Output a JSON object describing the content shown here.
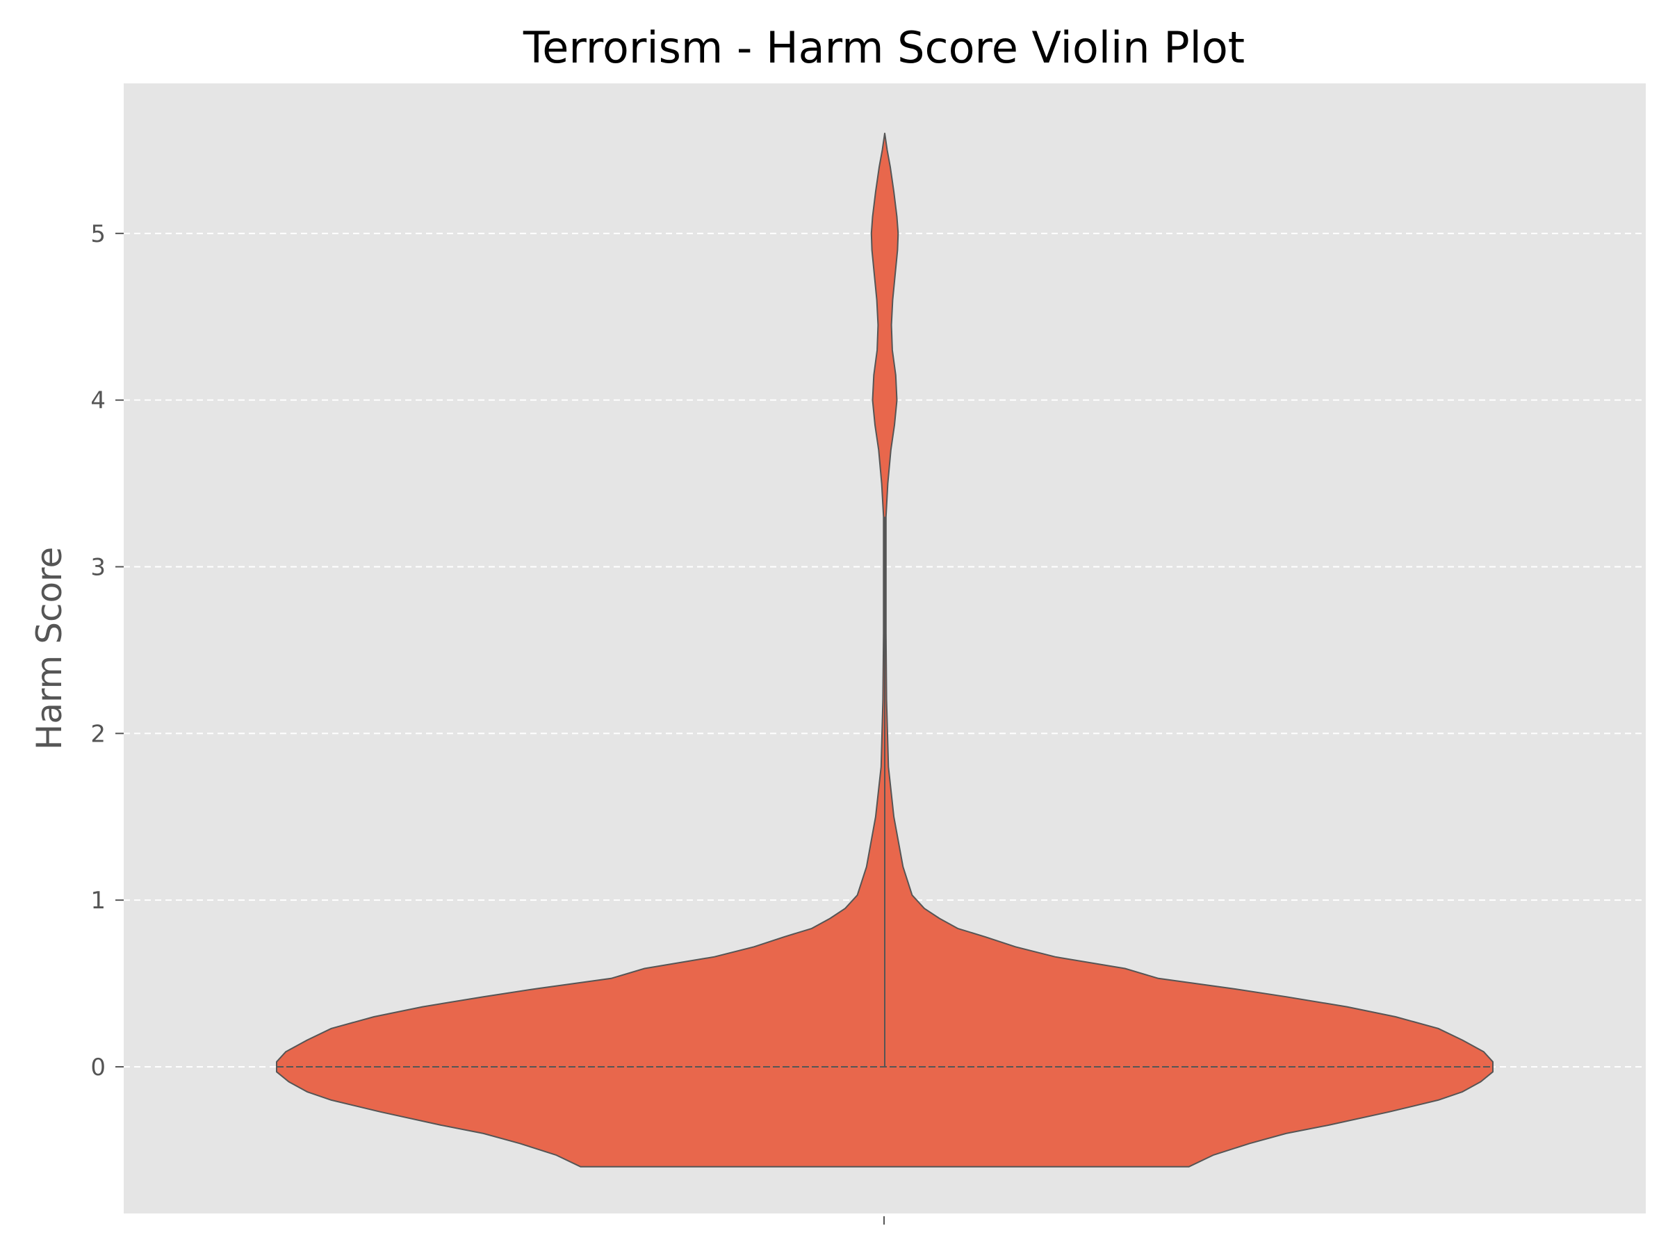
{
  "chart_data": {
    "type": "violin",
    "title": "Terrorism - Harm Score Violin Plot",
    "xlabel": "",
    "ylabel": "Harm Score",
    "ylim": [
      -0.88,
      5.9
    ],
    "yticks": [
      0,
      1,
      2,
      3,
      4,
      5
    ],
    "grid": true,
    "colors": {
      "violin_fill": "#E8674C",
      "violin_edge": "#555555",
      "plot_background": "#E5E5E5",
      "grid": "#FFFFFF"
    },
    "violin": {
      "category": "",
      "data_min": -0.6,
      "data_max": 5.6,
      "median": 0.0,
      "inner_line_range": [
        0.0,
        3.3
      ],
      "density_profile": [
        [
          -0.6,
          1.0
        ],
        [
          -0.53,
          1.08
        ],
        [
          -0.46,
          1.2
        ],
        [
          -0.4,
          1.32
        ],
        [
          -0.35,
          1.46
        ],
        [
          -0.27,
          1.66
        ],
        [
          -0.2,
          1.82
        ],
        [
          -0.15,
          1.9
        ],
        [
          -0.09,
          1.96
        ],
        [
          -0.03,
          2.0
        ],
        [
          0.0,
          2.0
        ],
        [
          0.03,
          2.0
        ],
        [
          0.09,
          1.97
        ],
        [
          0.16,
          1.9
        ],
        [
          0.23,
          1.82
        ],
        [
          0.3,
          1.68
        ],
        [
          0.36,
          1.52
        ],
        [
          0.42,
          1.32
        ],
        [
          0.47,
          1.14
        ],
        [
          0.53,
          0.9
        ],
        [
          0.59,
          0.79
        ],
        [
          0.66,
          0.56
        ],
        [
          0.72,
          0.43
        ],
        [
          0.78,
          0.33
        ],
        [
          0.83,
          0.24
        ],
        [
          0.89,
          0.18
        ],
        [
          0.95,
          0.13
        ],
        [
          1.03,
          0.09
        ],
        [
          1.2,
          0.06
        ],
        [
          1.5,
          0.03
        ],
        [
          1.8,
          0.012
        ],
        [
          2.2,
          0.006
        ],
        [
          2.6,
          0.004
        ],
        [
          3.0,
          0.004
        ],
        [
          3.3,
          0.004
        ],
        [
          3.5,
          0.01
        ],
        [
          3.7,
          0.02
        ],
        [
          3.85,
          0.032
        ],
        [
          4.0,
          0.04
        ],
        [
          4.15,
          0.036
        ],
        [
          4.3,
          0.025
        ],
        [
          4.45,
          0.022
        ],
        [
          4.6,
          0.026
        ],
        [
          4.75,
          0.034
        ],
        [
          4.9,
          0.042
        ],
        [
          5.0,
          0.044
        ],
        [
          5.1,
          0.04
        ],
        [
          5.25,
          0.03
        ],
        [
          5.4,
          0.018
        ],
        [
          5.5,
          0.008
        ],
        [
          5.6,
          0.0
        ]
      ]
    }
  }
}
